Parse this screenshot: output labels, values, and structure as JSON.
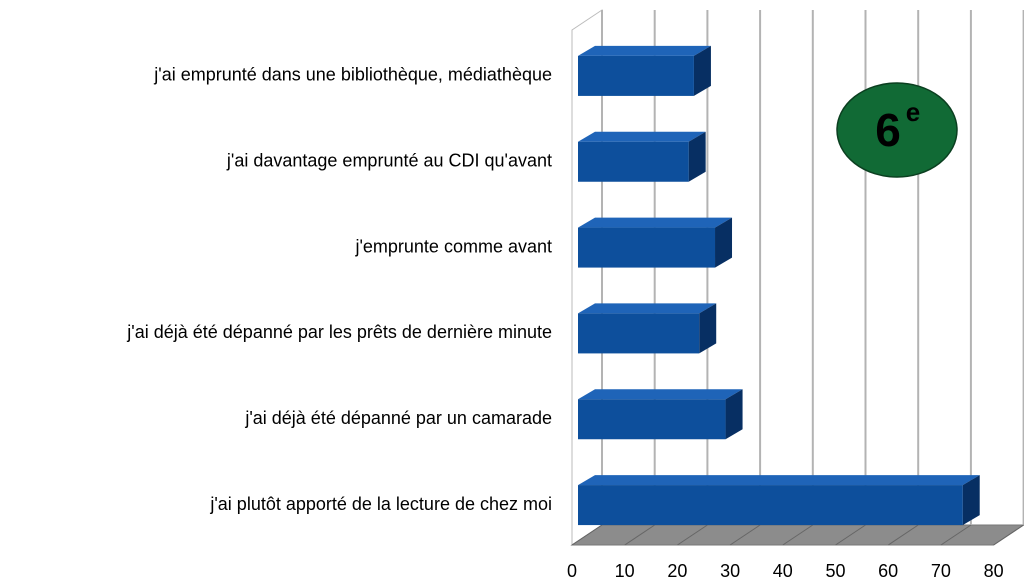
{
  "chart_data": {
    "type": "bar3d",
    "categories": [
      "j'ai emprunté dans une bibliothèque, médiathèque",
      "j'ai davantage emprunté au CDI qu'avant",
      "j'emprunte comme avant",
      "j'ai déjà été dépanné par les prêts de dernière minute",
      "j'ai déjà été dépanné par un camarade",
      "j'ai plutôt apporté de la lecture de chez moi"
    ],
    "values": [
      22,
      21,
      26,
      23,
      28,
      73
    ],
    "color": "#0d4f9c",
    "xlim": [
      0,
      80
    ],
    "xticks": [
      0,
      10,
      20,
      30,
      40,
      50,
      60,
      70,
      80
    ],
    "grid": true,
    "badge": "6",
    "badge_sup": "e",
    "badge_color": "#116a35"
  }
}
